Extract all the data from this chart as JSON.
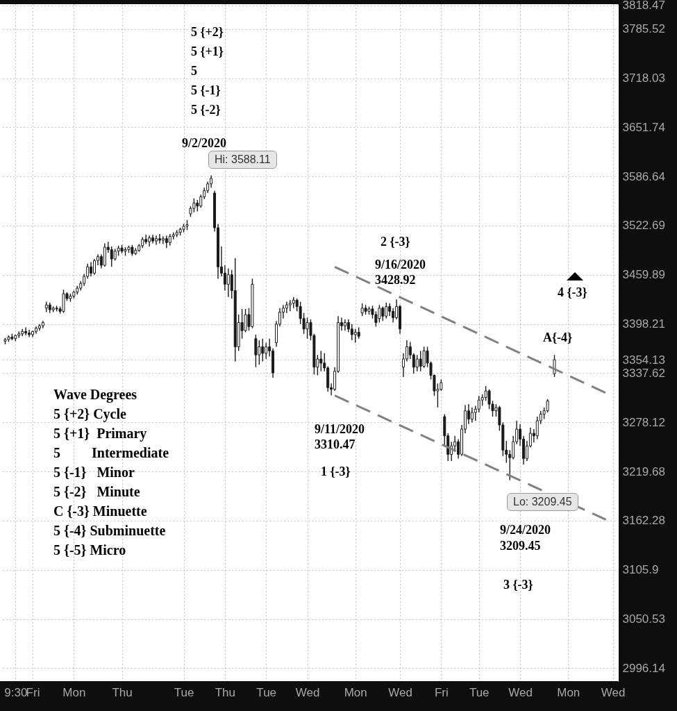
{
  "chart_data": {
    "type": "candlestick",
    "log": "y",
    "grid": true,
    "categories": [
      null,
      null,
      null,
      "9:30",
      null,
      null,
      null,
      null,
      "Fri",
      null,
      null,
      null,
      null,
      null,
      null,
      null,
      null,
      null,
      null,
      null,
      "Mon",
      null,
      null,
      null,
      null,
      null,
      null,
      null,
      null,
      null,
      null,
      null,
      null,
      null,
      "Thu",
      null,
      null,
      null,
      null,
      null,
      null,
      null,
      null,
      null,
      null,
      null,
      null,
      null,
      null,
      null,
      null,
      null,
      "Tue",
      null,
      null,
      null,
      null,
      null,
      null,
      null,
      null,
      null,
      null,
      null,
      "Thu",
      null,
      null,
      null,
      null,
      null,
      null,
      null,
      null,
      null,
      null,
      null,
      "Tue",
      null,
      null,
      null,
      null,
      null,
      null,
      null,
      null,
      null,
      null,
      null,
      "Wed",
      null,
      null,
      null,
      null,
      null,
      null,
      null,
      null,
      null,
      null,
      null,
      null,
      null,
      "Mon",
      null,
      null,
      null,
      null,
      null,
      null,
      null,
      null,
      null,
      null,
      null,
      null,
      "Wed",
      null,
      null,
      null,
      null,
      null,
      null,
      null,
      null,
      null,
      null,
      null,
      "Fri",
      null,
      null,
      null,
      null,
      null,
      null,
      null,
      null,
      null,
      null,
      "Tue",
      null,
      null,
      null,
      null,
      null,
      null,
      null,
      null,
      null,
      null,
      null,
      "Wed",
      null,
      null,
      null,
      null,
      null,
      null,
      null,
      null,
      null,
      null,
      null,
      null,
      null,
      "Mon",
      null,
      null,
      null,
      null,
      null,
      null,
      null,
      null,
      null,
      null,
      null,
      null,
      "Wed"
    ],
    "ylim": [
      2982,
      3820
    ],
    "yticks": [
      2996.14,
      3050.53,
      3105.9,
      3162.28,
      3219.68,
      3278.12,
      3337.62,
      3354.13,
      3398.21,
      3459.89,
      3522.69,
      3586.64,
      3651.74,
      3718.03,
      3785.52,
      3818.47
    ],
    "series": [
      {
        "color": "#1a1a1a",
        "ohlc": [
          [
            3377,
            3381,
            3373,
            3379
          ],
          [
            3379,
            3384,
            3376,
            3382
          ],
          [
            3382,
            3386,
            3378,
            3380
          ],
          [
            3380,
            3385,
            3377,
            3384
          ],
          [
            3384,
            3389,
            3381,
            3386
          ],
          [
            3386,
            3392,
            3383,
            3389
          ],
          [
            3389,
            3394,
            3384,
            3387
          ],
          [
            3387,
            3391,
            3382,
            3385
          ],
          [
            3385,
            3390,
            3382,
            3389
          ],
          [
            3389,
            3395,
            3386,
            3393
          ],
          [
            3393,
            3398,
            3390,
            3396
          ],
          [
            3396,
            3402,
            3393,
            3400
          ],
          [
            3418,
            3426,
            3413,
            3422
          ],
          [
            3422,
            3425,
            3412,
            3416
          ],
          [
            3416,
            3420,
            3413,
            3418
          ],
          [
            3418,
            3421,
            3414,
            3417
          ],
          [
            3417,
            3420,
            3411,
            3414
          ],
          [
            3414,
            3441,
            3412,
            3436
          ],
          [
            3436,
            3438,
            3427,
            3430
          ],
          [
            3430,
            3436,
            3426,
            3433
          ],
          [
            3433,
            3440,
            3430,
            3438
          ],
          [
            3438,
            3446,
            3435,
            3443
          ],
          [
            3443,
            3452,
            3440,
            3449
          ],
          [
            3449,
            3461,
            3446,
            3458
          ],
          [
            3458,
            3474,
            3455,
            3470
          ],
          [
            3470,
            3476,
            3458,
            3462
          ],
          [
            3462,
            3480,
            3460,
            3478
          ],
          [
            3478,
            3486,
            3472,
            3483
          ],
          [
            3483,
            3486,
            3468,
            3472
          ],
          [
            3472,
            3500,
            3470,
            3495
          ],
          [
            3495,
            3502,
            3488,
            3492
          ],
          [
            3492,
            3496,
            3470,
            3480
          ],
          [
            3480,
            3493,
            3478,
            3490
          ],
          [
            3490,
            3497,
            3484,
            3494
          ],
          [
            3494,
            3498,
            3487,
            3490
          ],
          [
            3490,
            3495,
            3484,
            3492
          ],
          [
            3492,
            3497,
            3488,
            3495
          ],
          [
            3495,
            3498,
            3484,
            3487
          ],
          [
            3487,
            3494,
            3485,
            3491
          ],
          [
            3491,
            3499,
            3489,
            3497
          ],
          [
            3497,
            3508,
            3494,
            3505
          ],
          [
            3505,
            3511,
            3499,
            3502
          ],
          [
            3502,
            3510,
            3496,
            3507
          ],
          [
            3507,
            3511,
            3500,
            3503
          ],
          [
            3503,
            3510,
            3498,
            3506
          ],
          [
            3506,
            3512,
            3500,
            3504
          ],
          [
            3504,
            3509,
            3499,
            3506
          ],
          [
            3506,
            3510,
            3494,
            3501
          ],
          [
            3501,
            3512,
            3497,
            3509
          ],
          [
            3509,
            3514,
            3505,
            3511
          ],
          [
            3511,
            3517,
            3508,
            3514
          ],
          [
            3514,
            3520,
            3510,
            3518
          ],
          [
            3518,
            3525,
            3514,
            3522
          ],
          [
            3522,
            3530,
            3517,
            3524
          ],
          [
            3538,
            3548,
            3534,
            3545
          ],
          [
            3545,
            3558,
            3540,
            3552
          ],
          [
            3552,
            3556,
            3541,
            3548
          ],
          [
            3548,
            3563,
            3546,
            3560
          ],
          [
            3560,
            3572,
            3557,
            3568
          ],
          [
            3568,
            3580,
            3565,
            3577
          ],
          [
            3577,
            3588.11,
            3572,
            3584
          ],
          [
            3565,
            3568,
            3515,
            3520
          ],
          [
            3520,
            3525,
            3455,
            3470
          ],
          [
            3470,
            3496,
            3458,
            3462
          ],
          [
            3462,
            3472,
            3440,
            3448
          ],
          [
            3448,
            3468,
            3432,
            3460
          ],
          [
            3460,
            3466,
            3430,
            3440
          ],
          [
            3440,
            3481,
            3352,
            3370
          ],
          [
            3370,
            3410,
            3365,
            3400
          ],
          [
            3400,
            3417,
            3380,
            3390
          ],
          [
            3390,
            3417,
            3388,
            3410
          ],
          [
            3410,
            3418,
            3390,
            3395
          ],
          [
            3395,
            3455,
            3393,
            3448
          ],
          [
            3380,
            3385,
            3345,
            3360
          ],
          [
            3360,
            3378,
            3348,
            3370
          ],
          [
            3370,
            3380,
            3352,
            3362
          ],
          [
            3362,
            3375,
            3355,
            3370
          ],
          [
            3370,
            3380,
            3358,
            3365
          ],
          [
            3365,
            3368,
            3332,
            3338
          ],
          [
            3375,
            3402,
            3370,
            3398
          ],
          [
            3398,
            3418,
            3395,
            3413
          ],
          [
            3413,
            3422,
            3405,
            3418
          ],
          [
            3418,
            3426,
            3412,
            3422
          ],
          [
            3422,
            3428,
            3414,
            3424
          ],
          [
            3424,
            3432,
            3418,
            3428
          ],
          [
            3428,
            3430,
            3414,
            3420
          ],
          [
            3420,
            3426,
            3398,
            3405
          ],
          [
            3405,
            3412,
            3386,
            3392
          ],
          [
            3392,
            3406,
            3380,
            3400
          ],
          [
            3400,
            3404,
            3378,
            3384
          ],
          [
            3384,
            3386,
            3336,
            3345
          ],
          [
            3345,
            3360,
            3335,
            3355
          ],
          [
            3355,
            3365,
            3340,
            3350
          ],
          [
            3350,
            3362,
            3340,
            3344
          ],
          [
            3344,
            3346,
            3315,
            3320
          ],
          [
            3320,
            3325,
            3310.47,
            3318
          ],
          [
            3318,
            3345,
            3316,
            3340
          ],
          [
            3340,
            3408,
            3338,
            3400
          ],
          [
            3400,
            3406,
            3390,
            3396
          ],
          [
            3396,
            3404,
            3390,
            3400
          ],
          [
            3400,
            3404,
            3388,
            3392
          ],
          [
            3392,
            3398,
            3378,
            3385
          ],
          [
            3385,
            3392,
            3375,
            3388
          ],
          [
            3388,
            3394,
            3380,
            3383
          ],
          [
            3412,
            3424,
            3408,
            3418
          ],
          [
            3418,
            3422,
            3410,
            3414
          ],
          [
            3414,
            3420,
            3410,
            3417
          ],
          [
            3417,
            3421,
            3405,
            3410
          ],
          [
            3410,
            3414,
            3395,
            3400
          ],
          [
            3405,
            3422,
            3400,
            3418
          ],
          [
            3418,
            3420,
            3402,
            3408
          ],
          [
            3408,
            3425,
            3405,
            3420
          ],
          [
            3420,
            3424,
            3408,
            3414
          ],
          [
            3414,
            3418,
            3400,
            3406
          ],
          [
            3406,
            3428.92,
            3404,
            3420
          ],
          [
            3420,
            3422,
            3386,
            3392
          ],
          [
            3345,
            3362,
            3333,
            3355
          ],
          [
            3355,
            3378,
            3352,
            3370
          ],
          [
            3370,
            3376,
            3355,
            3360
          ],
          [
            3360,
            3362,
            3337,
            3345
          ],
          [
            3345,
            3360,
            3340,
            3355
          ],
          [
            3355,
            3365,
            3340,
            3346
          ],
          [
            3346,
            3370,
            3344,
            3365
          ],
          [
            3365,
            3370,
            3345,
            3350
          ],
          [
            3350,
            3352,
            3330,
            3335
          ],
          [
            3335,
            3336,
            3310,
            3316
          ],
          [
            3316,
            3325,
            3296,
            3318
          ],
          [
            3318,
            3330,
            3316,
            3326
          ],
          [
            3285,
            3288,
            3250,
            3262
          ],
          [
            3262,
            3265,
            3232,
            3240
          ],
          [
            3240,
            3255,
            3232,
            3250
          ],
          [
            3250,
            3262,
            3243,
            3255
          ],
          [
            3255,
            3258,
            3235,
            3240
          ],
          [
            3240,
            3275,
            3238,
            3270
          ],
          [
            3270,
            3299,
            3265,
            3292
          ],
          [
            3292,
            3300,
            3276,
            3282
          ],
          [
            3282,
            3296,
            3278,
            3290
          ],
          [
            3290,
            3298,
            3280,
            3294
          ],
          [
            3294,
            3310,
            3290,
            3305
          ],
          [
            3305,
            3312,
            3298,
            3308
          ],
          [
            3308,
            3322,
            3304,
            3316
          ],
          [
            3316,
            3318,
            3294,
            3300
          ],
          [
            3300,
            3304,
            3285,
            3292
          ],
          [
            3292,
            3300,
            3285,
            3296
          ],
          [
            3296,
            3298,
            3268,
            3275
          ],
          [
            3275,
            3278,
            3238,
            3245
          ],
          [
            3245,
            3256,
            3230,
            3240
          ],
          [
            3240,
            3245,
            3209.45,
            3236
          ],
          [
            3236,
            3262,
            3234,
            3255
          ],
          [
            3255,
            3280,
            3252,
            3270
          ],
          [
            3270,
            3276,
            3250,
            3258
          ],
          [
            3258,
            3262,
            3228,
            3235
          ],
          [
            3235,
            3256,
            3232,
            3250
          ],
          [
            3250,
            3272,
            3248,
            3265
          ],
          [
            3265,
            3270,
            3254,
            3262
          ],
          [
            3262,
            3285,
            3258,
            3280
          ],
          [
            3280,
            3292,
            3276,
            3288
          ],
          [
            3288,
            3296,
            3282,
            3292
          ],
          [
            3292,
            3306,
            3290,
            3304
          ],
          null,
          [
            3337,
            3360,
            3333,
            3354.13
          ],
          null,
          null,
          null,
          null,
          null,
          null,
          null,
          null,
          null,
          null,
          null,
          null,
          null,
          null,
          null,
          null,
          null
        ]
      },
      {
        "type": "line",
        "color": "#808080",
        "line_style": "dashed",
        "values": [
          null,
          null,
          null,
          null,
          null,
          null,
          null,
          null,
          null,
          null,
          null,
          null,
          null,
          null,
          null,
          null,
          null,
          null,
          null,
          null,
          null,
          null,
          null,
          null,
          null,
          null,
          null,
          null,
          null,
          null,
          null,
          null,
          null,
          null,
          null,
          null,
          null,
          null,
          null,
          null,
          null,
          null,
          null,
          null,
          null,
          null,
          null,
          null,
          null,
          null,
          null,
          null,
          null,
          null,
          null,
          null,
          null,
          null,
          null,
          null,
          null,
          null,
          null,
          null,
          null,
          null,
          null,
          null,
          null,
          null,
          null,
          null,
          null,
          null,
          null,
          null,
          null,
          null,
          null,
          null,
          null,
          null,
          null,
          null,
          null,
          null,
          null,
          null,
          null,
          null,
          null,
          null,
          null,
          null,
          null,
          null,
          3470,
          null,
          null,
          null,
          null,
          null,
          null,
          null,
          null,
          null,
          null,
          null,
          null,
          null,
          null,
          null,
          null,
          null,
          null,
          null,
          null,
          null,
          null,
          null,
          null,
          null,
          null,
          null,
          null,
          null,
          null,
          null,
          null,
          null,
          null,
          null,
          null,
          null,
          null,
          null,
          null,
          null,
          null,
          null,
          null,
          null,
          null,
          null,
          null,
          null,
          null,
          null,
          null,
          null,
          null,
          null,
          null,
          null,
          null,
          null,
          null,
          null,
          null,
          null,
          null,
          null,
          null,
          null,
          null,
          null,
          null,
          null,
          null,
          null,
          null,
          null,
          null,
          null,
          null,
          3313.5,
          null,
          null
        ]
      },
      {
        "type": "line",
        "color": "#808080",
        "line_style": "dashed",
        "values": [
          null,
          null,
          null,
          null,
          null,
          null,
          null,
          null,
          null,
          null,
          null,
          null,
          null,
          null,
          null,
          null,
          null,
          null,
          null,
          null,
          null,
          null,
          null,
          null,
          null,
          null,
          null,
          null,
          null,
          null,
          null,
          null,
          null,
          null,
          null,
          null,
          null,
          null,
          null,
          null,
          null,
          null,
          null,
          null,
          null,
          null,
          null,
          null,
          null,
          null,
          null,
          null,
          null,
          null,
          null,
          null,
          null,
          null,
          null,
          null,
          null,
          null,
          null,
          null,
          null,
          null,
          null,
          null,
          null,
          null,
          null,
          null,
          null,
          null,
          null,
          null,
          null,
          null,
          null,
          null,
          null,
          null,
          null,
          null,
          null,
          null,
          null,
          null,
          null,
          null,
          null,
          null,
          null,
          null,
          null,
          null,
          3310.47,
          null,
          null,
          null,
          null,
          null,
          null,
          null,
          null,
          null,
          null,
          null,
          null,
          null,
          null,
          null,
          null,
          null,
          null,
          null,
          null,
          null,
          null,
          null,
          null,
          null,
          null,
          null,
          null,
          null,
          null,
          null,
          null,
          null,
          null,
          null,
          null,
          null,
          null,
          null,
          null,
          null,
          null,
          null,
          null,
          null,
          null,
          null,
          null,
          null,
          null,
          null,
          null,
          null,
          null,
          null,
          null,
          null,
          null,
          null,
          null,
          null,
          null,
          null,
          null,
          null,
          null,
          null,
          null,
          null,
          null,
          null,
          null,
          null,
          null,
          null,
          null,
          null,
          null,
          3163.5,
          null,
          null
        ]
      }
    ],
    "annotations": [
      "5 {+2}",
      "5 {+1}",
      "5",
      "5 {-1}",
      "5 {-2}",
      "9/2/2020",
      "Hi: 3588.11",
      "2 {-3}",
      "9/16/2020",
      "3428.92",
      "4 {-3}",
      "A{-4}",
      "9/11/2020",
      "3310.47",
      "1 {-3}",
      "Lo: 3209.45",
      "9/24/2020",
      "3209.45",
      "3 {-3}",
      "Wave Degrees",
      "5 {+2} Cycle",
      "5 {+1}  Primary",
      "5         Intermediate",
      "5 {-1}   Minor",
      "5 {-2}   Minute",
      "C {-3} Minuette",
      "5 {-4} Subminuette",
      "5 {-5} Micro"
    ]
  }
}
